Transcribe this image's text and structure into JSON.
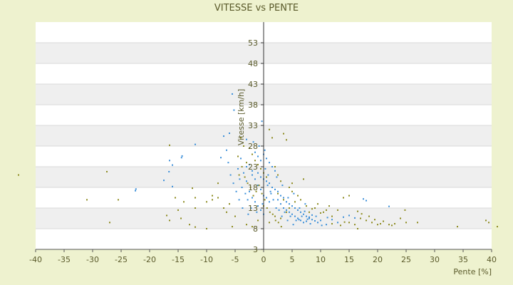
{
  "chart_data": {
    "type": "scatter",
    "title": "VITESSE vs PENTE",
    "xlabel": "Pente [%]",
    "ylabel": "Vitesse [km/h]",
    "xlim": [
      -40,
      40
    ],
    "ylim": [
      0,
      55
    ],
    "xticks": [
      -40,
      -35,
      -30,
      -25,
      -20,
      -15,
      -10,
      -5,
      0,
      5,
      10,
      15,
      20,
      25,
      30,
      35,
      40
    ],
    "yticks": [
      3,
      8,
      13,
      18,
      23,
      28,
      33,
      38,
      43,
      48,
      53
    ],
    "ytick_values": [
      0,
      5,
      10,
      15,
      20,
      25,
      30,
      35,
      40,
      45,
      50
    ],
    "grid": true,
    "legend": "none",
    "colors": {
      "background": "#eef2cf",
      "plot_band_light": "#ffffff",
      "plot_band_dark": "#efefef",
      "series_a": "#3b8fd9",
      "series_b": "#8c8a1e"
    },
    "series": [
      {
        "color": "#3b8fd9",
        "points": [
          [
            -5.5,
            37.6
          ],
          [
            -5.2,
            33.7
          ],
          [
            -6.0,
            28.1
          ],
          [
            -3.0,
            26.6
          ],
          [
            -7.0,
            27.4
          ],
          [
            -7.5,
            22.2
          ],
          [
            -16.5,
            21.5
          ],
          [
            -16.0,
            20.4
          ],
          [
            -16.6,
            18.8
          ],
          [
            -14.4,
            22.2
          ],
          [
            -14.3,
            22.6
          ],
          [
            -12.0,
            25.4
          ],
          [
            -17.5,
            16.7
          ],
          [
            -22.4,
            14.6
          ],
          [
            -22.5,
            14.2
          ],
          [
            -16.0,
            15.2
          ],
          [
            -4.0,
            22.0
          ],
          [
            -3.0,
            20.0
          ],
          [
            -2.0,
            19.0
          ],
          [
            -1.0,
            18.5
          ],
          [
            -0.5,
            17.5
          ],
          [
            0.0,
            17.0
          ],
          [
            0.5,
            16.5
          ],
          [
            1.0,
            16.0
          ],
          [
            1.5,
            15.0
          ],
          [
            2.0,
            14.5
          ],
          [
            2.5,
            14.0
          ],
          [
            3.0,
            13.0
          ],
          [
            3.5,
            12.5
          ],
          [
            4.0,
            11.5
          ],
          [
            4.5,
            11.0
          ],
          [
            5.0,
            10.5
          ],
          [
            5.5,
            10.0
          ],
          [
            6.0,
            9.5
          ],
          [
            6.5,
            9.0
          ],
          [
            7.0,
            8.5
          ],
          [
            7.5,
            8.0
          ],
          [
            8.0,
            7.5
          ],
          [
            8.5,
            7.2
          ],
          [
            9.0,
            6.9
          ],
          [
            -1.5,
            23.5
          ],
          [
            -1.0,
            22.5
          ],
          [
            -0.5,
            21.5
          ],
          [
            0.0,
            23.0
          ],
          [
            0.5,
            22.0
          ],
          [
            1.0,
            21.0
          ],
          [
            1.5,
            20.0
          ],
          [
            2.0,
            19.0
          ],
          [
            -2.5,
            20.5
          ],
          [
            -2.0,
            18.0
          ],
          [
            -1.5,
            17.0
          ],
          [
            -1.0,
            15.5
          ],
          [
            -0.5,
            14.5
          ],
          [
            0.0,
            13.0
          ],
          [
            0.5,
            12.5
          ],
          [
            1.0,
            11.5
          ],
          [
            -3.5,
            18.5
          ],
          [
            -3.0,
            16.5
          ],
          [
            -2.5,
            14.0
          ],
          [
            -2.0,
            12.5
          ],
          [
            -1.5,
            11.5
          ],
          [
            -1.0,
            10.5
          ],
          [
            -0.5,
            9.5
          ],
          [
            0.0,
            8.5
          ],
          [
            2.5,
            12.0
          ],
          [
            3.0,
            11.0
          ],
          [
            3.5,
            10.0
          ],
          [
            4.0,
            9.5
          ],
          [
            4.5,
            9.0
          ],
          [
            5.0,
            8.5
          ],
          [
            5.5,
            8.0
          ],
          [
            6.0,
            7.5
          ],
          [
            6.5,
            7.0
          ],
          [
            7.0,
            6.5
          ],
          [
            7.5,
            6.8
          ],
          [
            8.0,
            7.8
          ],
          [
            8.5,
            8.3
          ],
          [
            9.5,
            6.5
          ],
          [
            10.0,
            7.0
          ],
          [
            11.0,
            6.0
          ],
          [
            12.0,
            7.2
          ],
          [
            13.0,
            6.5
          ],
          [
            14.0,
            7.8
          ],
          [
            15.0,
            8.2
          ],
          [
            16.0,
            7.6
          ],
          [
            17.5,
            12.2
          ],
          [
            18.0,
            11.8
          ],
          [
            22.0,
            10.4
          ],
          [
            -0.3,
            31.0
          ],
          [
            0.2,
            24.0
          ],
          [
            -0.8,
            25.0
          ],
          [
            0.8,
            18.0
          ],
          [
            -1.8,
            26.0
          ],
          [
            1.2,
            14.0
          ],
          [
            2.2,
            10.0
          ],
          [
            3.2,
            8.0
          ],
          [
            4.2,
            7.0
          ],
          [
            5.2,
            6.0
          ],
          [
            6.2,
            7.2
          ],
          [
            7.2,
            9.2
          ],
          [
            8.2,
            6.2
          ],
          [
            9.2,
            8.0
          ],
          [
            10.2,
            5.8
          ],
          [
            11.2,
            7.7
          ],
          [
            -4.5,
            19.5
          ],
          [
            -4.2,
            17.0
          ],
          [
            -3.8,
            15.0
          ],
          [
            -3.2,
            13.5
          ],
          [
            -2.8,
            12.0
          ],
          [
            -2.2,
            10.0
          ],
          [
            -1.2,
            9.0
          ],
          [
            -0.2,
            11.0
          ],
          [
            0.3,
            19.5
          ],
          [
            0.7,
            15.5
          ],
          [
            1.3,
            13.5
          ],
          [
            1.7,
            12.0
          ],
          [
            2.3,
            17.5
          ],
          [
            2.7,
            9.5
          ],
          [
            3.3,
            15.5
          ],
          [
            3.7,
            9.0
          ],
          [
            4.3,
            12.5
          ],
          [
            4.7,
            8.0
          ],
          [
            5.3,
            13.5
          ],
          [
            5.7,
            7.0
          ],
          [
            6.3,
            10.0
          ],
          [
            6.7,
            8.0
          ],
          [
            7.3,
            11.0
          ],
          [
            7.7,
            7.3
          ],
          [
            -6.5,
            24.0
          ],
          [
            -6.2,
            21.0
          ],
          [
            -5.8,
            18.0
          ],
          [
            -5.3,
            16.0
          ],
          [
            -4.8,
            14.0
          ],
          [
            -4.3,
            12.0
          ],
          [
            -3.7,
            10.0
          ],
          [
            -2.7,
            8.5
          ]
        ]
      },
      {
        "color": "#8c8a1e",
        "points": [
          [
            -43.0,
            18.0
          ],
          [
            -31.0,
            12.0
          ],
          [
            -27.5,
            18.8
          ],
          [
            -27.0,
            6.5
          ],
          [
            -25.5,
            12.0
          ],
          [
            -17.0,
            8.2
          ],
          [
            -16.5,
            7.0
          ],
          [
            -16.5,
            25.2
          ],
          [
            -15.0,
            9.5
          ],
          [
            -15.5,
            12.5
          ],
          [
            -14.0,
            11.5
          ],
          [
            -14.5,
            7.5
          ],
          [
            -13.0,
            6.0
          ],
          [
            -12.0,
            10.0
          ],
          [
            -12.0,
            12.5
          ],
          [
            -12.5,
            14.8
          ],
          [
            -12.0,
            5.4
          ],
          [
            -10.0,
            5.0
          ],
          [
            -10.0,
            11.5
          ],
          [
            -9.0,
            12.0
          ],
          [
            -9.0,
            13.0
          ],
          [
            -8.0,
            16.0
          ],
          [
            -8.0,
            12.5
          ],
          [
            -7.0,
            10.0
          ],
          [
            -6.5,
            9.0
          ],
          [
            -6.0,
            11.0
          ],
          [
            -5.5,
            5.5
          ],
          [
            -5.0,
            8.0
          ],
          [
            -4.5,
            22.5
          ],
          [
            -4.0,
            27.0
          ],
          [
            -3.5,
            25.0
          ],
          [
            -3.0,
            21.0
          ],
          [
            -2.5,
            24.5
          ],
          [
            -2.0,
            23.0
          ],
          [
            -1.5,
            21.5
          ],
          [
            -1.0,
            20.5
          ],
          [
            -0.5,
            19.5
          ],
          [
            0.0,
            18.5
          ],
          [
            0.5,
            17.5
          ],
          [
            1.0,
            29.0
          ],
          [
            1.5,
            27.0
          ],
          [
            2.0,
            20.0
          ],
          [
            2.5,
            18.0
          ],
          [
            3.0,
            16.5
          ],
          [
            3.5,
            28.0
          ],
          [
            4.0,
            26.5
          ],
          [
            4.5,
            15.0
          ],
          [
            5.0,
            14.0
          ],
          [
            -3.0,
            6.0
          ],
          [
            -2.0,
            5.5
          ],
          [
            -1.0,
            7.0
          ],
          [
            0.0,
            10.5
          ],
          [
            1.0,
            6.5
          ],
          [
            2.0,
            8.0
          ],
          [
            3.0,
            7.5
          ],
          [
            4.0,
            9.0
          ],
          [
            5.0,
            16.0
          ],
          [
            6.0,
            13.0
          ],
          [
            7.0,
            17.0
          ],
          [
            8.0,
            9.0
          ],
          [
            9.0,
            10.0
          ],
          [
            10.0,
            8.8
          ],
          [
            11.0,
            9.5
          ],
          [
            12.0,
            8.0
          ],
          [
            13.0,
            9.5
          ],
          [
            14.0,
            12.5
          ],
          [
            15.0,
            13.0
          ],
          [
            16.0,
            6.0
          ],
          [
            16.5,
            5.0
          ],
          [
            17.0,
            7.5
          ],
          [
            18.0,
            7.0
          ],
          [
            19.0,
            6.5
          ],
          [
            20.0,
            6.0
          ],
          [
            21.0,
            6.8
          ],
          [
            22.0,
            6.0
          ],
          [
            23.0,
            6.2
          ],
          [
            24.0,
            7.5
          ],
          [
            25.0,
            6.5
          ],
          [
            27.0,
            6.5
          ],
          [
            34.0,
            5.5
          ],
          [
            39.0,
            7.0
          ],
          [
            39.5,
            6.5
          ],
          [
            41.0,
            5.5
          ],
          [
            15.0,
            6.5
          ],
          [
            13.5,
            5.8
          ],
          [
            12.0,
            6.2
          ],
          [
            11.5,
            10.5
          ],
          [
            10.5,
            9.0
          ],
          [
            9.5,
            11.0
          ],
          [
            8.5,
            9.8
          ],
          [
            7.5,
            10.5
          ],
          [
            6.5,
            12.0
          ],
          [
            5.5,
            11.5
          ],
          [
            4.5,
            10.0
          ],
          [
            3.5,
            12.0
          ],
          [
            2.5,
            13.5
          ],
          [
            -0.8,
            15.5
          ],
          [
            -1.3,
            14.0
          ],
          [
            -1.8,
            13.0
          ],
          [
            -2.3,
            15.0
          ],
          [
            -2.8,
            16.0
          ],
          [
            -3.3,
            17.5
          ],
          [
            -3.8,
            20.0
          ],
          [
            -4.3,
            18.0
          ],
          [
            -0.3,
            13.5
          ],
          [
            0.2,
            12.0
          ],
          [
            0.6,
            10.0
          ],
          [
            1.1,
            9.0
          ],
          [
            1.6,
            8.5
          ],
          [
            2.1,
            7.0
          ],
          [
            2.6,
            6.5
          ],
          [
            3.1,
            5.5
          ],
          [
            16.5,
            9.2
          ],
          [
            17.2,
            8.6
          ],
          [
            18.5,
            8.0
          ],
          [
            19.5,
            7.2
          ],
          [
            20.5,
            6.2
          ],
          [
            22.5,
            5.8
          ],
          [
            24.8,
            9.5
          ],
          [
            14.2,
            6.6
          ]
        ]
      }
    ]
  }
}
